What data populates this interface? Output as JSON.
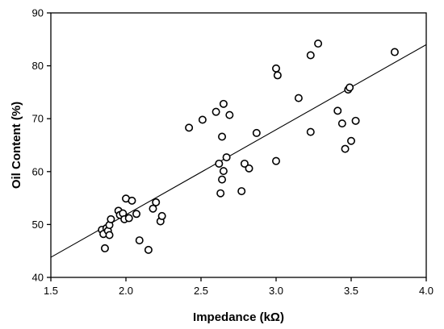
{
  "chart_data": {
    "type": "scatter",
    "title": "",
    "xlabel": "Impedance (kΩ)",
    "ylabel": "Oil Content (%)",
    "xlim": [
      1.5,
      4.0
    ],
    "ylim": [
      40,
      90
    ],
    "xticks": [
      1.5,
      2.0,
      2.5,
      3.0,
      3.5,
      4.0
    ],
    "xtick_labels": [
      "1.5",
      "2.0",
      "2.5",
      "3.0",
      "3.5",
      "4.0"
    ],
    "yticks": [
      40,
      50,
      60,
      70,
      80,
      90
    ],
    "ytick_labels": [
      "40",
      "50",
      "60",
      "70",
      "80",
      "90"
    ],
    "grid": false,
    "legend": "none",
    "marker": "open-circle",
    "series": [
      {
        "points": [
          [
            1.84,
            49.0
          ],
          [
            1.85,
            48.2
          ],
          [
            1.86,
            45.5
          ],
          [
            1.87,
            49.3
          ],
          [
            1.88,
            48.8
          ],
          [
            1.89,
            49.9
          ],
          [
            1.89,
            48.0
          ],
          [
            1.9,
            51.0
          ],
          [
            1.95,
            52.6
          ],
          [
            1.96,
            51.8
          ],
          [
            1.98,
            52.1
          ],
          [
            1.99,
            51.0
          ],
          [
            2.0,
            54.9
          ],
          [
            2.02,
            51.2
          ],
          [
            2.04,
            54.5
          ],
          [
            2.07,
            52.0
          ],
          [
            2.09,
            47.0
          ],
          [
            2.15,
            45.2
          ],
          [
            2.18,
            53.0
          ],
          [
            2.2,
            54.2
          ],
          [
            2.23,
            50.6
          ],
          [
            2.24,
            51.6
          ],
          [
            2.42,
            68.3
          ],
          [
            2.51,
            69.8
          ],
          [
            2.6,
            71.3
          ],
          [
            2.62,
            61.5
          ],
          [
            2.63,
            55.9
          ],
          [
            2.64,
            66.6
          ],
          [
            2.64,
            58.5
          ],
          [
            2.65,
            72.8
          ],
          [
            2.65,
            60.1
          ],
          [
            2.67,
            62.7
          ],
          [
            2.69,
            70.7
          ],
          [
            2.77,
            56.3
          ],
          [
            2.79,
            61.5
          ],
          [
            2.82,
            60.6
          ],
          [
            2.87,
            67.3
          ],
          [
            3.0,
            79.5
          ],
          [
            3.0,
            62.0
          ],
          [
            3.01,
            78.2
          ],
          [
            3.15,
            73.9
          ],
          [
            3.23,
            82.0
          ],
          [
            3.23,
            67.5
          ],
          [
            3.28,
            84.2
          ],
          [
            3.41,
            71.5
          ],
          [
            3.44,
            69.1
          ],
          [
            3.46,
            64.3
          ],
          [
            3.48,
            75.5
          ],
          [
            3.49,
            75.9
          ],
          [
            3.5,
            65.8
          ],
          [
            3.53,
            69.6
          ],
          [
            3.79,
            82.6
          ]
        ]
      }
    ],
    "fit_line": {
      "type": "linear",
      "x": [
        1.5,
        4.0
      ],
      "y": [
        43.8,
        84.0
      ]
    }
  }
}
